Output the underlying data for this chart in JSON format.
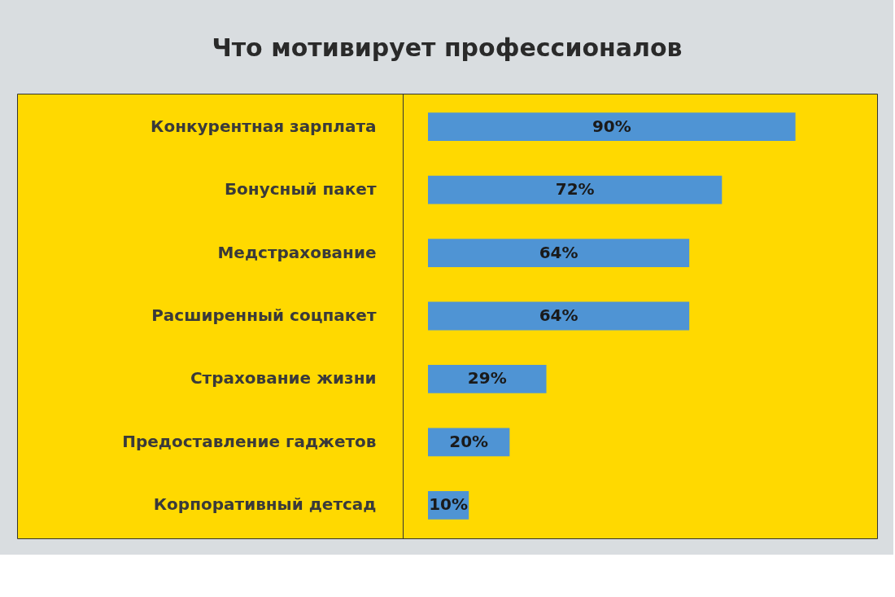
{
  "chart_data": {
    "type": "bar",
    "orientation": "horizontal",
    "title": "Что мотивирует профессионалов",
    "categories": [
      "Конкурентная зарплата",
      "Бонусный пакет",
      "Медстрахование",
      "Расширенный соцпакет",
      "Страхование жизни",
      "Предоставление гаджетов",
      "Корпоративный детсад"
    ],
    "values": [
      90,
      72,
      64,
      64,
      29,
      20,
      10
    ],
    "value_labels": [
      "90%",
      "72%",
      "64%",
      "64%",
      "29%",
      "20%",
      "10%"
    ],
    "color": "#4f94d4",
    "xlim": [
      0,
      110
    ]
  }
}
